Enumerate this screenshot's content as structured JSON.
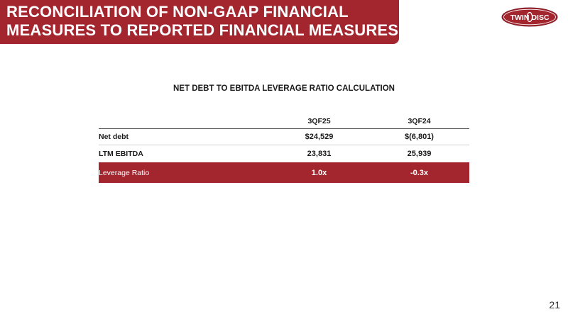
{
  "header": {
    "title_line1": "RECONCILIATION OF NON-GAAP FINANCIAL",
    "title_line2": "MEASURES TO REPORTED FINANCIAL MEASURES",
    "band_color": "#a3262f"
  },
  "logo": {
    "word1": "TWIN",
    "word2": "DISC",
    "color": "#a3262f"
  },
  "section_title": "NET DEBT TO EBITDA LEVERAGE RATIO CALCULATION",
  "table": {
    "columns": [
      "3QF25",
      "3QF24"
    ],
    "rows": [
      {
        "label": "Net debt",
        "values": [
          "$24,529",
          "$(6,801)"
        ]
      },
      {
        "label": "LTM EBITDA",
        "values": [
          "23,831",
          "25,939"
        ]
      },
      {
        "label": "Leverage Ratio",
        "values": [
          "1.0x",
          "-0.3x"
        ]
      }
    ]
  },
  "page_number": "21"
}
